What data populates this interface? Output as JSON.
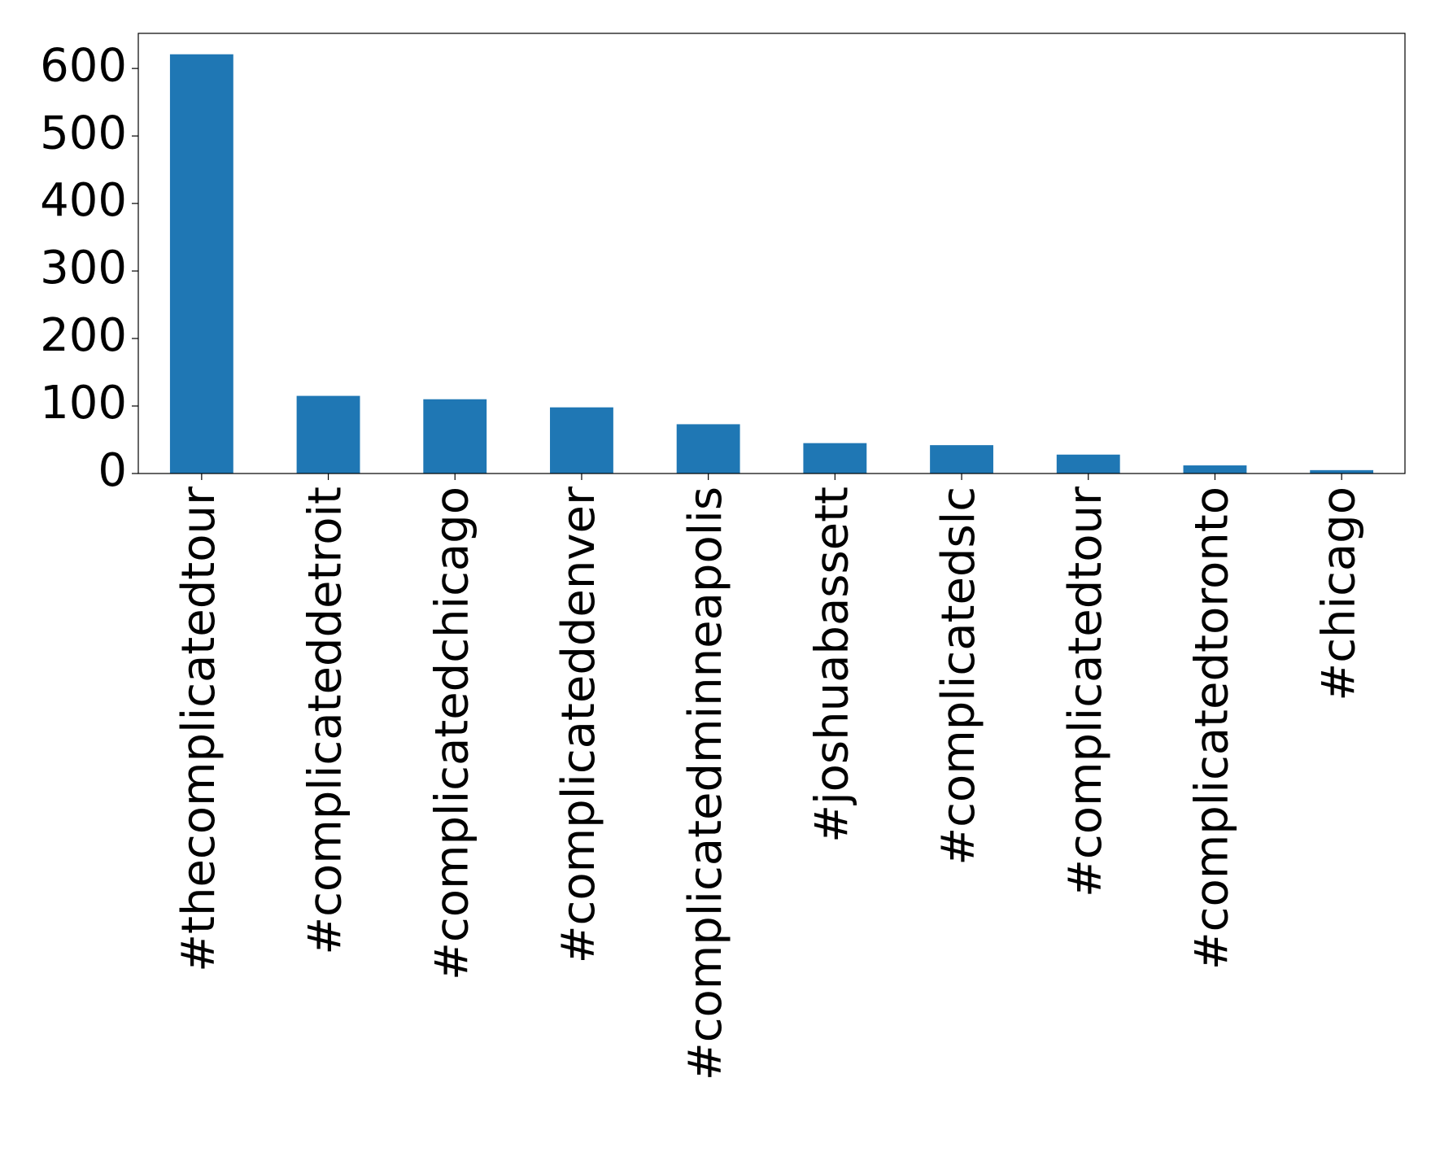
{
  "chart_data": {
    "type": "bar",
    "categories": [
      "#thecomplicatedtour",
      "#complicateddetroit",
      "#complicatedchicago",
      "#complicateddenver",
      "#complicatedminneapolis",
      "#joshuabassett",
      "#complicatedslc",
      "#complicatedtour",
      "#complicatedtoronto",
      "#chicago"
    ],
    "values": [
      621,
      115,
      110,
      98,
      73,
      45,
      42,
      28,
      12,
      5
    ],
    "color": "#1f77b4",
    "ylim": [
      0,
      652
    ],
    "yticks": [
      0,
      100,
      200,
      300,
      400,
      500,
      600
    ],
    "grid": false
  }
}
